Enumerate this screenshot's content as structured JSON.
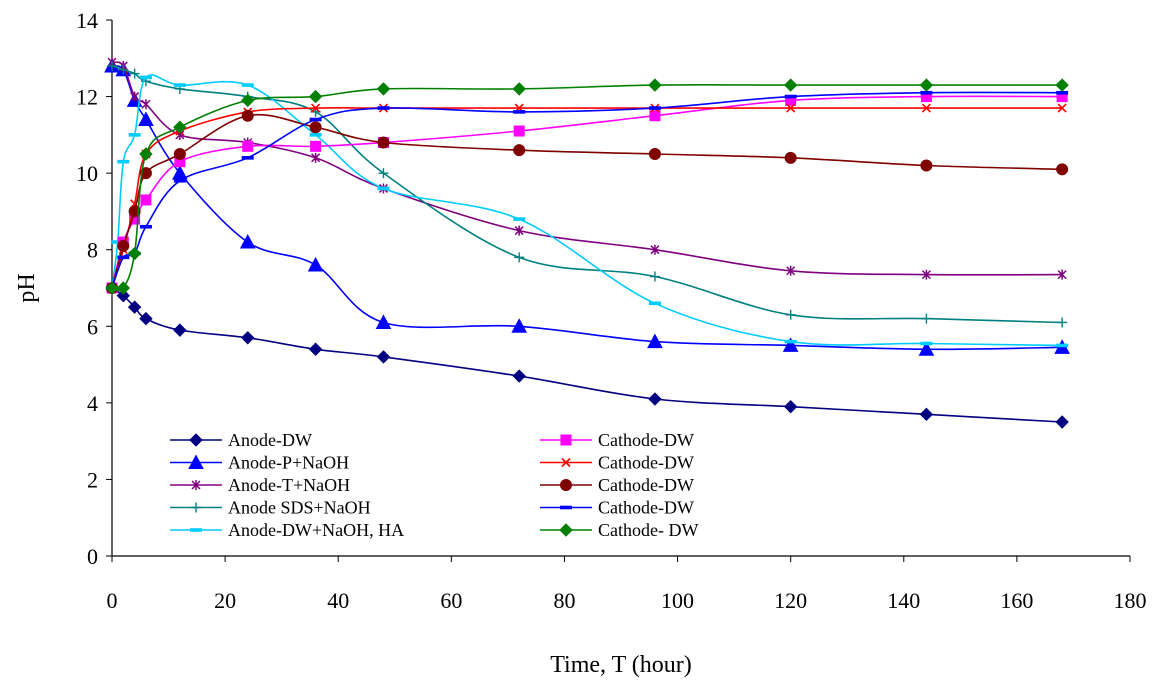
{
  "chart_data": {
    "type": "line",
    "xlabel": "Time, T (hour)",
    "ylabel": "pH",
    "xlim": [
      0,
      180
    ],
    "ylim": [
      0,
      14
    ],
    "xticks": [
      0,
      20,
      40,
      60,
      80,
      100,
      120,
      140,
      160,
      180
    ],
    "yticks": [
      0,
      2,
      4,
      6,
      8,
      10,
      12,
      14
    ],
    "grid": false,
    "legend_position": "bottom-left inside plot, two columns",
    "series": [
      {
        "name": "Anode-DW",
        "color": "#000080",
        "marker": "diamond",
        "x": [
          0,
          2,
          4,
          6,
          12,
          24,
          36,
          48,
          72,
          96,
          120,
          144,
          168
        ],
        "y": [
          7.0,
          6.8,
          6.5,
          6.2,
          5.9,
          5.7,
          5.4,
          5.2,
          4.7,
          4.1,
          3.9,
          3.7,
          3.5
        ]
      },
      {
        "name": "Anode-P+NaOH",
        "color": "#0000ff",
        "marker": "triangle",
        "x": [
          0,
          2,
          4,
          6,
          12,
          24,
          36,
          48,
          72,
          96,
          120,
          144,
          168
        ],
        "y": [
          12.8,
          12.7,
          11.9,
          11.4,
          10.0,
          8.2,
          7.6,
          6.1,
          6.0,
          5.6,
          5.5,
          5.4,
          5.45
        ]
      },
      {
        "name": "Anode-T+NaOH",
        "color": "#800080",
        "marker": "asterisk",
        "x": [
          0,
          2,
          4,
          6,
          12,
          24,
          36,
          48,
          72,
          96,
          120,
          144,
          168
        ],
        "y": [
          12.9,
          12.8,
          12.0,
          11.8,
          11.0,
          10.8,
          10.4,
          9.6,
          8.5,
          8.0,
          7.45,
          7.35,
          7.35
        ]
      },
      {
        "name": "Anode SDS+NaOH",
        "color": "#008080",
        "marker": "plus",
        "x": [
          0,
          2,
          4,
          6,
          12,
          24,
          36,
          48,
          72,
          96,
          120,
          144,
          168
        ],
        "y": [
          12.8,
          12.7,
          12.6,
          12.4,
          12.2,
          12.0,
          11.6,
          10.0,
          7.8,
          7.3,
          6.3,
          6.2,
          6.1
        ]
      },
      {
        "name": "Anode-DW+NaOH, HA",
        "color": "#00ccff",
        "marker": "dash",
        "x": [
          0,
          1,
          2,
          4,
          6,
          12,
          24,
          36,
          48,
          72,
          96,
          120,
          144,
          168
        ],
        "y": [
          7.0,
          8.2,
          10.3,
          11.0,
          12.5,
          12.3,
          12.3,
          11.0,
          9.6,
          8.8,
          6.6,
          5.6,
          5.55,
          5.5
        ]
      },
      {
        "name": "Cathode-DW",
        "color": "#ff00ff",
        "marker": "square",
        "x": [
          0,
          2,
          4,
          6,
          12,
          24,
          36,
          48,
          72,
          96,
          120,
          144,
          168
        ],
        "y": [
          7.0,
          8.2,
          8.8,
          9.3,
          10.3,
          10.7,
          10.7,
          10.8,
          11.1,
          11.5,
          11.9,
          12.0,
          12.0
        ]
      },
      {
        "name": "Cathode-DW",
        "color": "#ff0000",
        "marker": "x",
        "x": [
          0,
          2,
          4,
          6,
          12,
          24,
          36,
          48,
          72,
          96,
          120,
          144,
          168
        ],
        "y": [
          7.0,
          8.0,
          9.2,
          10.5,
          11.1,
          11.6,
          11.7,
          11.7,
          11.7,
          11.7,
          11.7,
          11.7,
          11.7
        ]
      },
      {
        "name": "Cathode-DW",
        "color": "#800000",
        "marker": "circle",
        "x": [
          0,
          2,
          4,
          6,
          12,
          24,
          36,
          48,
          72,
          96,
          120,
          144,
          168
        ],
        "y": [
          7.0,
          8.1,
          9.0,
          10.0,
          10.5,
          11.5,
          11.2,
          10.8,
          10.6,
          10.5,
          10.4,
          10.2,
          10.1
        ]
      },
      {
        "name": "Cathode-DW",
        "color": "#0000ff",
        "marker": "dash",
        "x": [
          0,
          2,
          4,
          6,
          12,
          24,
          36,
          48,
          72,
          96,
          120,
          144,
          168
        ],
        "y": [
          7.0,
          7.8,
          7.9,
          8.6,
          9.8,
          10.4,
          11.4,
          11.7,
          11.6,
          11.7,
          12.0,
          12.1,
          12.1
        ]
      },
      {
        "name": "Cathode- DW",
        "color": "#008000",
        "marker": "diamond",
        "x": [
          0,
          2,
          4,
          6,
          12,
          24,
          36,
          48,
          72,
          96,
          120,
          144,
          168
        ],
        "y": [
          7.0,
          7.0,
          7.9,
          10.5,
          11.2,
          11.9,
          12.0,
          12.2,
          12.2,
          12.3,
          12.3,
          12.3,
          12.3
        ]
      }
    ]
  }
}
